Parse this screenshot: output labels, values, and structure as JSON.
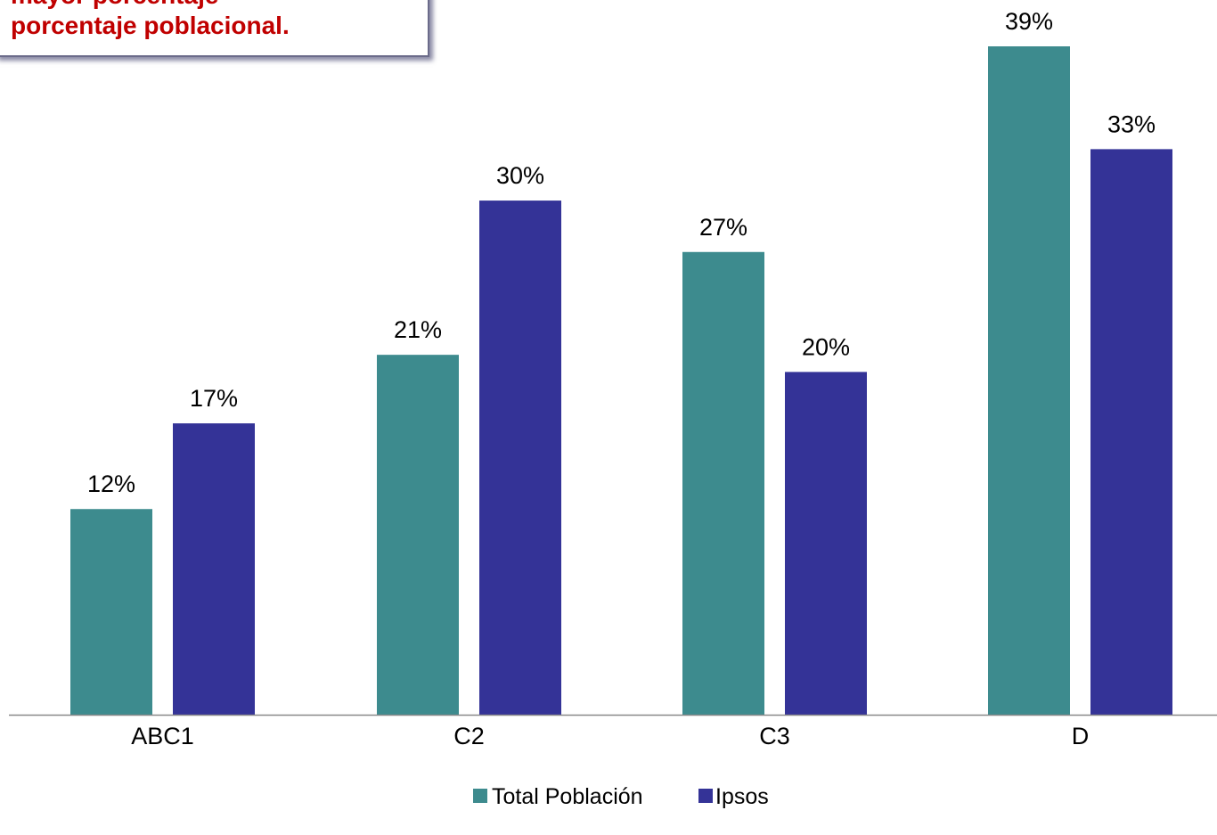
{
  "callout": {
    "line1": "mayor porcentaje",
    "line2": "porcentaje poblacional."
  },
  "chart_data": {
    "type": "bar",
    "title": "",
    "xlabel": "",
    "ylabel": "",
    "categories": [
      "ABC1",
      "C2",
      "C3",
      "D"
    ],
    "series": [
      {
        "name": "Total Población",
        "values": [
          12,
          21,
          27,
          39
        ],
        "labels": [
          "12%",
          "21%",
          "27%",
          "39%"
        ],
        "color": "#3d8b8e"
      },
      {
        "name": "Ipsos",
        "values": [
          17,
          30,
          20,
          33
        ],
        "labels": [
          "17%",
          "30%",
          "20%",
          "33%"
        ],
        "color": "#343397"
      }
    ],
    "ylim": [
      0,
      39
    ],
    "grid": false,
    "legend_position": "bottom"
  }
}
